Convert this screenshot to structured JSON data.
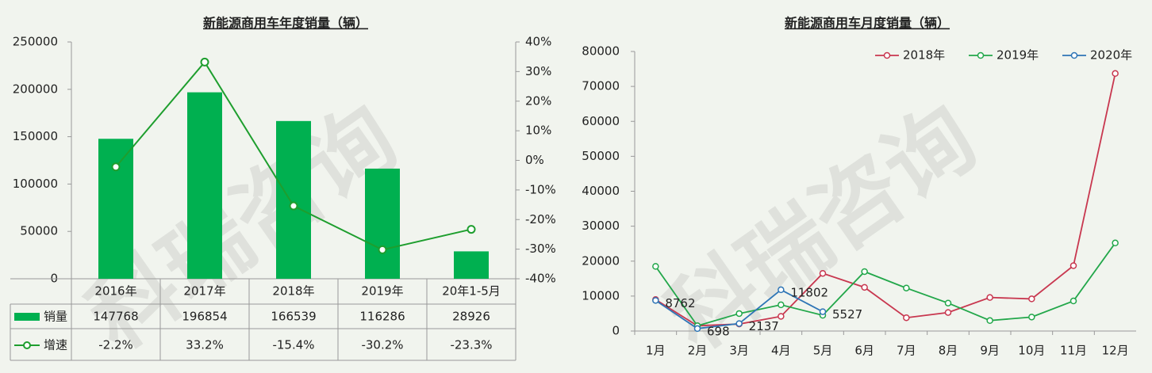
{
  "watermark": "科瑞咨询",
  "chart_data": [
    {
      "type": "bar",
      "title": "新能源商用车年度销量（辆）",
      "categories": [
        "2016年",
        "2017年",
        "2018年",
        "2019年",
        "20年1-5月"
      ],
      "series": [
        {
          "name": "销量",
          "color": "#00b050",
          "values": [
            147768,
            196854,
            166539,
            116286,
            28926
          ]
        },
        {
          "name": "增速",
          "color": "#1e9e2e",
          "axis": "y2",
          "values": [
            -2.2,
            33.2,
            -15.4,
            -30.2,
            -23.3
          ],
          "value_labels": [
            "-2.2%",
            "33.2%",
            "-15.4%",
            "-30.2%",
            "-23.3%"
          ]
        }
      ],
      "ylim": [
        0,
        250000
      ],
      "yticks": [
        0,
        50000,
        100000,
        150000,
        200000,
        250000
      ],
      "y2lim": [
        -40,
        40
      ],
      "y2ticks": [
        {
          "value": -40,
          "label": "-40%"
        },
        {
          "value": -30,
          "label": "-30%"
        },
        {
          "value": -20,
          "label": "-20%"
        },
        {
          "value": -10,
          "label": "-10%"
        },
        {
          "value": 0,
          "label": "0%"
        },
        {
          "value": 10,
          "label": "10%"
        },
        {
          "value": 20,
          "label": "20%"
        },
        {
          "value": 30,
          "label": "30%"
        },
        {
          "value": 40,
          "label": "40%"
        }
      ]
    },
    {
      "type": "line",
      "title": "新能源商用车月度销量（辆）",
      "categories": [
        "1月",
        "2月",
        "3月",
        "4月",
        "5月",
        "6月",
        "7月",
        "8月",
        "9月",
        "10月",
        "11月",
        "12月"
      ],
      "series": [
        {
          "name": "2018年",
          "color": "#c8374f",
          "values": [
            9000,
            1500,
            2000,
            4200,
            16500,
            12500,
            3800,
            5300,
            9600,
            9200,
            18700,
            73700
          ]
        },
        {
          "name": "2019年",
          "color": "#22a74a",
          "values": [
            18500,
            1500,
            5000,
            7500,
            4500,
            17000,
            12300,
            8000,
            3000,
            4000,
            8600,
            25200
          ]
        },
        {
          "name": "2020年",
          "color": "#2e75b6",
          "values": [
            8762,
            698,
            2137,
            11802,
            5527,
            null,
            null,
            null,
            null,
            null,
            null,
            null
          ],
          "data_labels": true
        }
      ],
      "ylim": [
        0,
        80000
      ],
      "yticks": [
        0,
        10000,
        20000,
        30000,
        40000,
        50000,
        60000,
        70000,
        80000
      ],
      "legend": "top-right"
    }
  ]
}
